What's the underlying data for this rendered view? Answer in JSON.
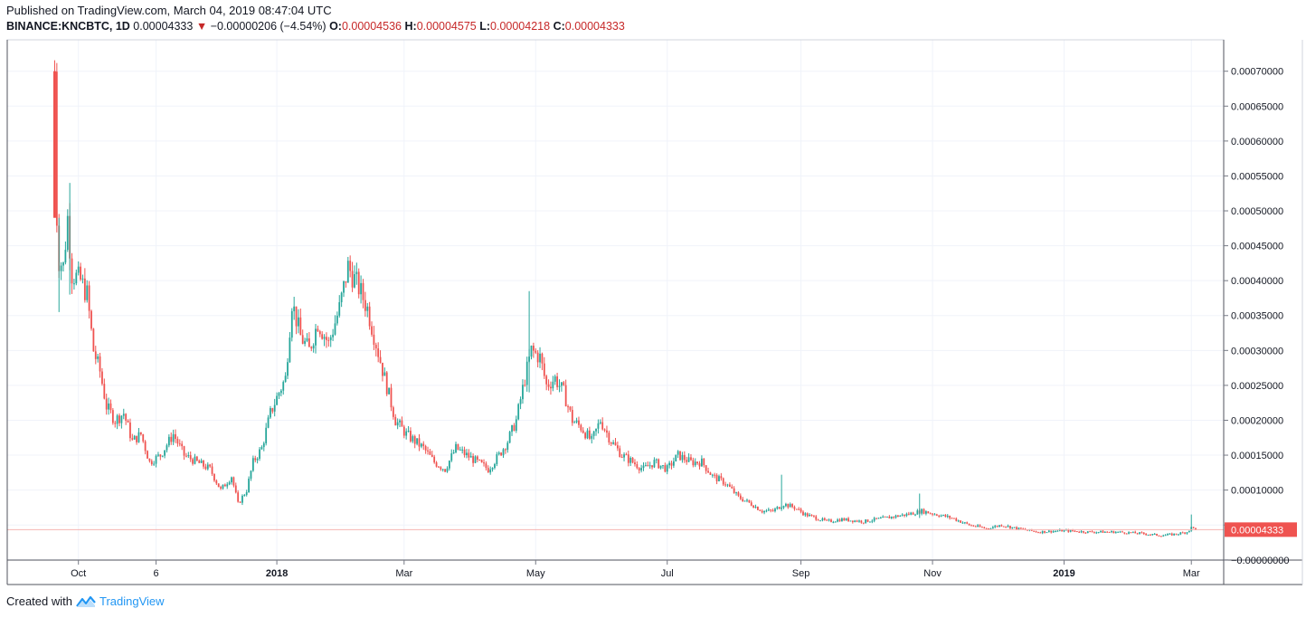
{
  "header": {
    "published": "Published on TradingView.com, March 04, 2019 08:47:04 UTC",
    "symbol": "BINANCE:KNCBTC, 1D",
    "last": "0.00004333",
    "change": "−0.00000206 (−4.54%)",
    "open_label": "O:",
    "open": "0.00004536",
    "high_label": "H:",
    "high": "0.00004575",
    "low_label": "L:",
    "low": "0.00004218",
    "close_label": "C:",
    "close": "0.00004333"
  },
  "footer": {
    "created_with": "Created with",
    "brand": "TradingView"
  },
  "colors": {
    "up": "#26a69a",
    "down": "#ef5350",
    "grid": "#f0f3fa",
    "axis": "#787b86",
    "last_price_bg": "#ef5350"
  },
  "chart_data": {
    "type": "candlestick",
    "y_axis": {
      "ticks": [
        0.0007,
        0.00065,
        0.0006,
        0.00055,
        0.0005,
        0.00045,
        0.0004,
        0.00035,
        0.0003,
        0.00025,
        0.0002,
        0.00015,
        0.0001,
        5e-05,
        0.0
      ],
      "tick_labels": [
        "0.00070000",
        "0.00065000",
        "0.00060000",
        "0.00055000",
        "0.00050000",
        "0.00045000",
        "0.00040000",
        "0.00035000",
        "0.00030000",
        "0.00025000",
        "0.00020000",
        "0.00015000",
        "0.00010000",
        "",
        "−0.00000000"
      ],
      "range": [
        -3e-07,
        0.000745
      ]
    },
    "x_axis": {
      "range": [
        "2017-08-29",
        "2019-03-16"
      ],
      "ticks": [
        {
          "date": "2017-10-01",
          "label": "Oct",
          "bold": false
        },
        {
          "date": "2017-11-06",
          "label": "6",
          "bold": false
        },
        {
          "date": "2018-01-01",
          "label": "2018",
          "bold": true
        },
        {
          "date": "2018-03-01",
          "label": "Mar",
          "bold": false
        },
        {
          "date": "2018-05-01",
          "label": "May",
          "bold": false
        },
        {
          "date": "2018-07-01",
          "label": "Jul",
          "bold": false
        },
        {
          "date": "2018-09-01",
          "label": "Sep",
          "bold": false
        },
        {
          "date": "2018-11-01",
          "label": "Nov",
          "bold": false
        },
        {
          "date": "2019-01-01",
          "label": "2019",
          "bold": true
        },
        {
          "date": "2019-03-01",
          "label": "Mar",
          "bold": false
        }
      ]
    },
    "last_price": 4.333e-05,
    "last_price_label": "0.00004333",
    "price_path": [
      [
        "2017-09-20",
        0.0007
      ],
      [
        "2017-09-21",
        0.00049
      ],
      [
        "2017-09-22",
        0.00043
      ],
      [
        "2017-09-24",
        0.00042
      ],
      [
        "2017-09-26",
        0.00049
      ],
      [
        "2017-09-28",
        0.00041
      ],
      [
        "2017-10-02",
        0.0004
      ],
      [
        "2017-10-05",
        0.00038
      ],
      [
        "2017-10-08",
        0.0003
      ],
      [
        "2017-10-11",
        0.00027
      ],
      [
        "2017-10-14",
        0.00022
      ],
      [
        "2017-10-18",
        0.0002
      ],
      [
        "2017-10-22",
        0.00021
      ],
      [
        "2017-10-26",
        0.00017
      ],
      [
        "2017-10-30",
        0.00018
      ],
      [
        "2017-11-03",
        0.00014
      ],
      [
        "2017-11-08",
        0.00015
      ],
      [
        "2017-11-14",
        0.00018
      ],
      [
        "2017-11-19",
        0.00015
      ],
      [
        "2017-11-25",
        0.00014
      ],
      [
        "2017-12-01",
        0.00013
      ],
      [
        "2017-12-06",
        0.0001
      ],
      [
        "2017-12-11",
        0.00012
      ],
      [
        "2017-12-14",
        8e-05
      ],
      [
        "2017-12-18",
        0.0001
      ],
      [
        "2017-12-21",
        0.00014
      ],
      [
        "2017-12-25",
        0.00016
      ],
      [
        "2017-12-29",
        0.00021
      ],
      [
        "2018-01-02",
        0.00024
      ],
      [
        "2018-01-05",
        0.00026
      ],
      [
        "2018-01-08",
        0.00037
      ],
      [
        "2018-01-12",
        0.00032
      ],
      [
        "2018-01-16",
        0.0003
      ],
      [
        "2018-01-20",
        0.00034
      ],
      [
        "2018-01-25",
        0.00031
      ],
      [
        "2018-01-30",
        0.00036
      ],
      [
        "2018-02-03",
        0.00042
      ],
      [
        "2018-02-08",
        0.00039
      ],
      [
        "2018-02-12",
        0.00036
      ],
      [
        "2018-02-16",
        0.00031
      ],
      [
        "2018-02-20",
        0.00026
      ],
      [
        "2018-02-25",
        0.0002
      ],
      [
        "2018-03-02",
        0.00018
      ],
      [
        "2018-03-06",
        0.00017
      ],
      [
        "2018-03-10",
        0.00016
      ],
      [
        "2018-03-15",
        0.00014
      ],
      [
        "2018-03-20",
        0.00013
      ],
      [
        "2018-03-25",
        0.00016
      ],
      [
        "2018-03-30",
        0.00015
      ],
      [
        "2018-04-04",
        0.00014
      ],
      [
        "2018-04-09",
        0.00013
      ],
      [
        "2018-04-14",
        0.00015
      ],
      [
        "2018-04-18",
        0.00017
      ],
      [
        "2018-04-22",
        0.0002
      ],
      [
        "2018-04-26",
        0.00026
      ],
      [
        "2018-04-29",
        0.0003
      ],
      [
        "2018-05-03",
        0.00029
      ],
      [
        "2018-05-06",
        0.00025
      ],
      [
        "2018-05-10",
        0.00026
      ],
      [
        "2018-05-14",
        0.00024
      ],
      [
        "2018-05-18",
        0.0002
      ],
      [
        "2018-05-22",
        0.00019
      ],
      [
        "2018-05-27",
        0.00017
      ],
      [
        "2018-05-31",
        0.0002
      ],
      [
        "2018-06-05",
        0.00017
      ],
      [
        "2018-06-10",
        0.00015
      ],
      [
        "2018-06-15",
        0.00014
      ],
      [
        "2018-06-20",
        0.00013
      ],
      [
        "2018-06-25",
        0.00014
      ],
      [
        "2018-07-01",
        0.00013
      ],
      [
        "2018-07-06",
        0.00015
      ],
      [
        "2018-07-12",
        0.00014
      ],
      [
        "2018-07-17",
        0.00014
      ],
      [
        "2018-07-22",
        0.00012
      ],
      [
        "2018-07-28",
        0.00011
      ],
      [
        "2018-08-03",
        9e-05
      ],
      [
        "2018-08-09",
        8e-05
      ],
      [
        "2018-08-14",
        7e-05
      ],
      [
        "2018-08-19",
        7e-05
      ],
      [
        "2018-08-24",
        8e-05
      ],
      [
        "2018-08-29",
        7.5e-05
      ],
      [
        "2018-09-03",
        6.5e-05
      ],
      [
        "2018-09-08",
        6e-05
      ],
      [
        "2018-09-13",
        5.5e-05
      ],
      [
        "2018-09-20",
        5.8e-05
      ],
      [
        "2018-09-30",
        5.5e-05
      ],
      [
        "2018-10-10",
        6e-05
      ],
      [
        "2018-10-20",
        6.5e-05
      ],
      [
        "2018-10-27",
        7e-05
      ],
      [
        "2018-11-03",
        6.5e-05
      ],
      [
        "2018-11-10",
        6e-05
      ],
      [
        "2018-11-18",
        5e-05
      ],
      [
        "2018-11-26",
        4.5e-05
      ],
      [
        "2018-12-03",
        5e-05
      ],
      [
        "2018-12-10",
        4.5e-05
      ],
      [
        "2018-12-20",
        4e-05
      ],
      [
        "2019-01-01",
        4.2e-05
      ],
      [
        "2019-01-12",
        4e-05
      ],
      [
        "2019-01-25",
        4e-05
      ],
      [
        "2019-02-05",
        3.8e-05
      ],
      [
        "2019-02-15",
        3.5e-05
      ],
      [
        "2019-02-22",
        3.7e-05
      ],
      [
        "2019-02-27",
        4e-05
      ],
      [
        "2019-03-01",
        4.6e-05
      ],
      [
        "2019-03-04",
        4.333e-05
      ]
    ],
    "spike_wicks": [
      {
        "date": "2017-09-22",
        "high": 0.00049,
        "low": 0.000355
      },
      {
        "date": "2017-09-27",
        "high": 0.00054,
        "low": 0.00038
      },
      {
        "date": "2018-04-28",
        "high": 0.000385,
        "low": 0.00024
      },
      {
        "date": "2018-08-23",
        "high": 0.000122,
        "low": 7e-05
      },
      {
        "date": "2018-10-26",
        "high": 9.5e-05,
        "low": 6e-05
      },
      {
        "date": "2019-03-01",
        "high": 6.5e-05,
        "low": 4.2e-05
      }
    ]
  }
}
